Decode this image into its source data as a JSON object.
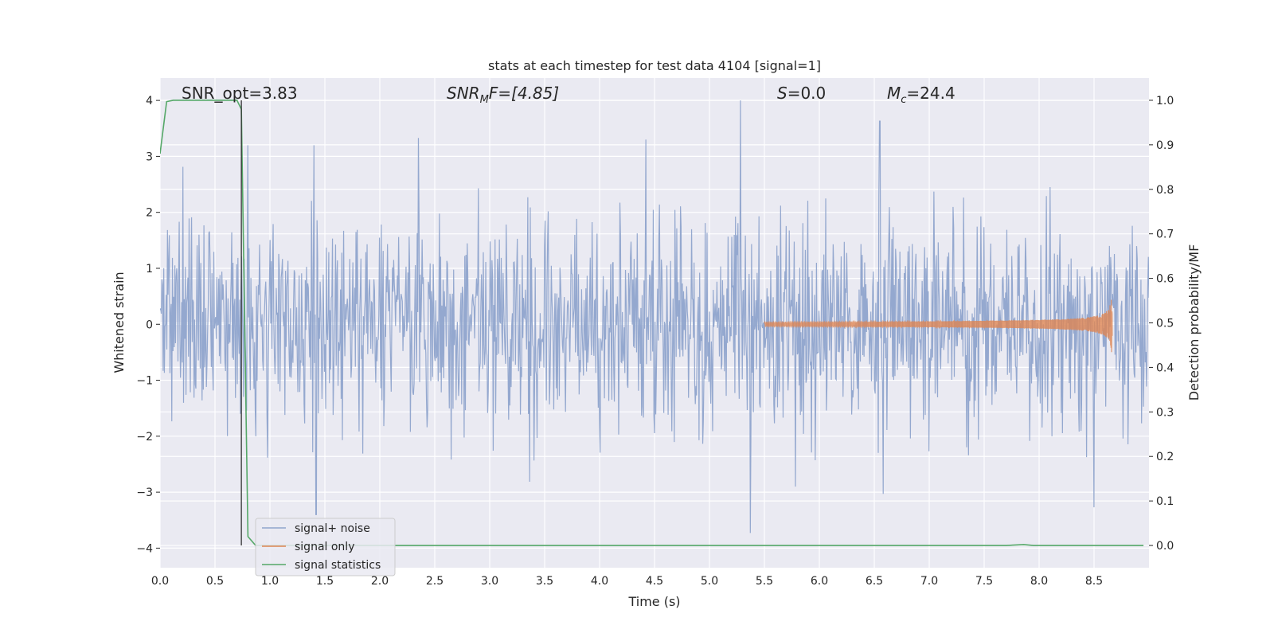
{
  "chart_data": {
    "type": "line",
    "title": "stats at each timestep for test data 4104 [signal=1]",
    "xlabel": "Time (s)",
    "ylabel": "Whitened strain",
    "ylabel_right": "Detection probability/MF",
    "xlim": [
      0,
      9.0
    ],
    "ylim": [
      -4.35,
      4.4
    ],
    "ylim_right": [
      -0.05,
      1.05
    ],
    "xticks": [
      "0.0",
      "0.5",
      "1.0",
      "1.5",
      "2.0",
      "2.5",
      "3.0",
      "3.5",
      "4.0",
      "4.5",
      "5.0",
      "5.5",
      "6.0",
      "6.5",
      "7.0",
      "7.5",
      "8.0",
      "8.5"
    ],
    "yticks": [
      "4",
      "3",
      "2",
      "1",
      "0",
      "−1",
      "−2",
      "−3",
      "−4"
    ],
    "yticks_right": [
      "1.0",
      "0.9",
      "0.8",
      "0.7",
      "0.6",
      "0.5",
      "0.4",
      "0.3",
      "0.2",
      "0.1",
      "0.0"
    ],
    "grid": true,
    "legend_position": "lower-left",
    "annotations": [
      {
        "key": "snr_opt",
        "text": "SNR_opt=3.83"
      },
      {
        "key": "snr_mf",
        "text": "SNR_MF=[4.85]",
        "math": [
          "SNR",
          "M",
          "F=[4.85]"
        ]
      },
      {
        "key": "s",
        "text": "S=0.0",
        "math": [
          "S",
          "=0.0"
        ]
      },
      {
        "key": "mc",
        "text": "M_c=24.4",
        "math": [
          "M",
          "c",
          "=24.4"
        ]
      }
    ],
    "vertical_marker_x": 0.74,
    "series": [
      {
        "name": "signal+ noise",
        "color": "#8fa4cc",
        "kind": "noise",
        "approx_envelope_peaks": [
          {
            "x": 0.8,
            "y": 3.2
          },
          {
            "x": 1.4,
            "y": 3.2
          },
          {
            "x": 2.35,
            "y": 3.33
          },
          {
            "x": 4.42,
            "y": 3.3
          },
          {
            "x": 5.28,
            "y": 4.0
          },
          {
            "x": 6.55,
            "y": 3.63
          },
          {
            "x": 1.42,
            "y": -3.4
          },
          {
            "x": 5.37,
            "y": -3.73
          },
          {
            "x": 6.58,
            "y": -3.03
          },
          {
            "x": 8.5,
            "y": -3.27
          }
        ]
      },
      {
        "name": "signal only",
        "color": "#dd8452",
        "kind": "chirp",
        "amplitude_start": 0.0,
        "amplitude_peak": 0.78,
        "t_start": 5.5,
        "t_merger": 8.67
      },
      {
        "name": "signal statistics",
        "color": "#55a868",
        "axis": "right",
        "points": [
          [
            0.0,
            0.88
          ],
          [
            0.06,
            0.997
          ],
          [
            0.12,
            1.0
          ],
          [
            0.3,
            1.0
          ],
          [
            0.6,
            1.0
          ],
          [
            0.7,
            1.0
          ],
          [
            0.74,
            0.98
          ],
          [
            0.8,
            0.02
          ],
          [
            0.87,
            0.0
          ],
          [
            2.0,
            0.0
          ],
          [
            5.0,
            0.0
          ],
          [
            7.7,
            0.0
          ],
          [
            7.86,
            0.002
          ],
          [
            7.95,
            0.0
          ],
          [
            8.95,
            0.0
          ]
        ]
      }
    ]
  }
}
